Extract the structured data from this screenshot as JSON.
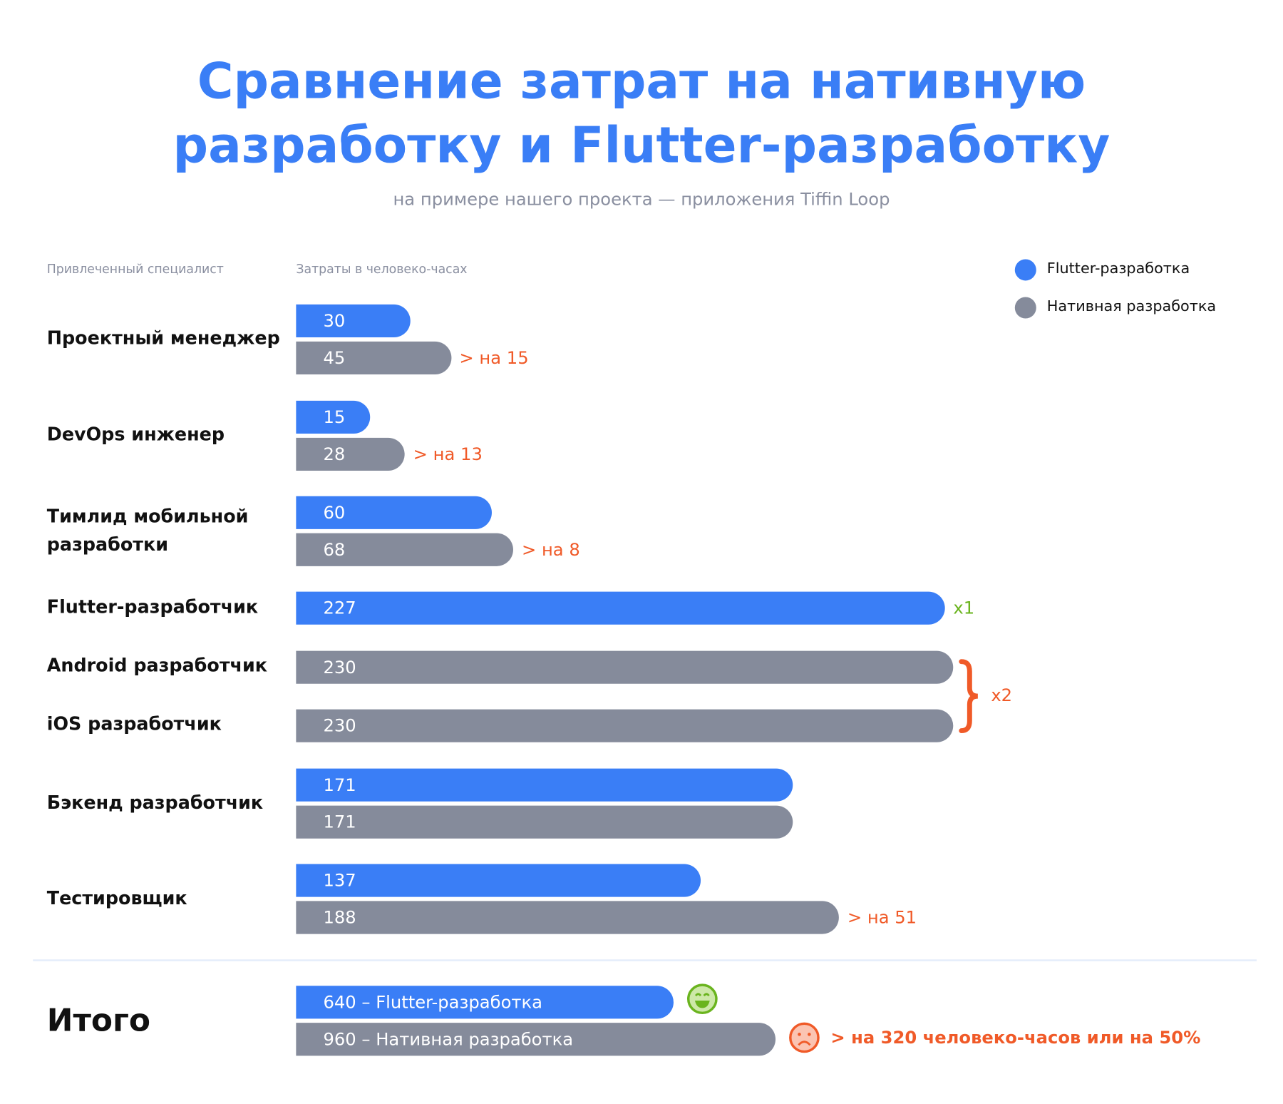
{
  "colors": {
    "flutter": "#3a7ef6",
    "native": "#858b9b",
    "diff": "#f05a28",
    "good": "#6ab41e"
  },
  "chart_data": {
    "type": "bar",
    "title": "Сравнение затрат на нативную разработку и Flutter-разработку",
    "title_lines": [
      "Сравнение затрат на нативную",
      "разработку и Flutter-разработку"
    ],
    "subtitle": "на примере нашего проекта — приложения Tiffin Loop",
    "category_header": "Привлеченный специалист",
    "value_header": "Затраты в человеко-часах",
    "legend": [
      {
        "name": "Flutter-разработка",
        "color": "#3a7ef6"
      },
      {
        "name": "Нативная разработка",
        "color": "#858b9b"
      }
    ],
    "legend_position": "top-right",
    "rows": [
      {
        "label": "Проектный менеджер",
        "flutter": 30,
        "native": 45,
        "note": "> на 15"
      },
      {
        "label": "DevOps инженер",
        "flutter": 15,
        "native": 28,
        "note": "> на 13"
      },
      {
        "label": "Тимлид мобильной разработки",
        "label_lines": [
          "Тимлид мобильной",
          "разработки"
        ],
        "flutter": 60,
        "native": 68,
        "note": "> на 8"
      },
      {
        "label": "Flutter-разработчик",
        "flutter": 227,
        "note": "x1"
      },
      {
        "label": "Android разработчик",
        "native": 230
      },
      {
        "label": "iOS разработчик",
        "native": 230,
        "note": "x2"
      },
      {
        "label": "Бэкенд разработчик",
        "flutter": 171,
        "native": 171
      },
      {
        "label": "Тестировщик",
        "flutter": 137,
        "native": 188,
        "note": "> на 51"
      }
    ],
    "total": {
      "label": "Итого",
      "flutter": 640,
      "native": 960,
      "flutter_text": "640 – Flutter-разработка",
      "native_text": "960 – Нативная разработка",
      "note": "> на  320 человеко-часов или на 50%",
      "flutter_icon": "happy-face-icon",
      "native_icon": "sad-face-icon"
    }
  }
}
